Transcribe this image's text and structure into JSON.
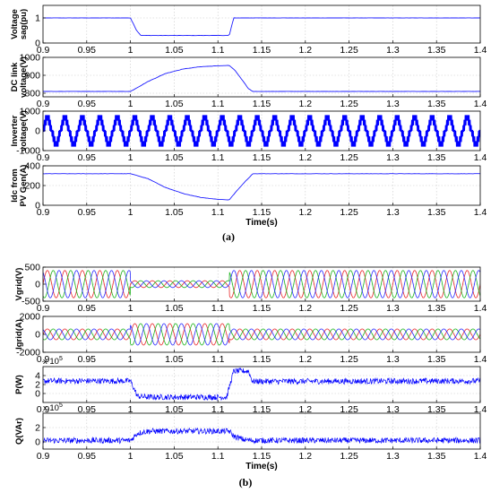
{
  "figure": {
    "caption_a": "(a)",
    "caption_b": "(b)"
  },
  "chart_data": [
    {
      "panel": "a1",
      "type": "line",
      "ylabel": [
        "Voltage",
        "sag(pu)"
      ],
      "xlim": [
        0.9,
        1.4
      ],
      "ylim": [
        0,
        1.5
      ],
      "yticks": [
        0,
        1
      ],
      "xticks": [
        "0.9",
        "0.95",
        "1",
        "1.05",
        "1.1",
        "1.15",
        "1.2",
        "1.25",
        "1.3",
        "1.35",
        "1.4"
      ],
      "xlabel": "",
      "grid": true,
      "series": [
        {
          "color": "#1a1aff",
          "x": [
            0.9,
            1.0,
            1.007,
            1.012,
            1.113,
            1.118,
            1.4
          ],
          "y": [
            1,
            1,
            0.5,
            0.3,
            0.3,
            1,
            1
          ]
        }
      ]
    },
    {
      "panel": "a2",
      "type": "line",
      "ylabel": [
        "DC link",
        "voltage(V)"
      ],
      "xlim": [
        0.9,
        1.4
      ],
      "ylim": [
        780,
        1000
      ],
      "yticks": [
        800,
        900,
        1000
      ],
      "xticks": [
        "0.9",
        "0.95",
        "1",
        "1.05",
        "1.1",
        "1.15",
        "1.2",
        "1.25",
        "1.3",
        "1.35",
        "1.4"
      ],
      "xlabel": "",
      "grid": true,
      "series": [
        {
          "color": "#1a1aff",
          "x": [
            0.9,
            1.0,
            1.02,
            1.04,
            1.06,
            1.08,
            1.1,
            1.113,
            1.12,
            1.135,
            1.14,
            1.4
          ],
          "y": [
            810,
            810,
            865,
            910,
            935,
            948,
            953,
            955,
            925,
            825,
            810,
            810
          ]
        }
      ]
    },
    {
      "panel": "a3",
      "type": "line",
      "ylabel": [
        "Inverter",
        "voltage(V)"
      ],
      "xlim": [
        0.9,
        1.4
      ],
      "ylim": [
        -1000,
        1000
      ],
      "yticks": [
        -1000,
        0,
        1000
      ],
      "xticks": [
        "0.9",
        "0.95",
        "1",
        "1.05",
        "1.1",
        "1.15",
        "1.2",
        "1.25",
        "1.3",
        "1.35",
        "1.4"
      ],
      "xlabel": "",
      "grid": true,
      "series": [
        {
          "color": "#0000ff",
          "frequency_hz": 50,
          "waveform": "multilevel-stepped",
          "amplitude": 800
        }
      ]
    },
    {
      "panel": "a4",
      "type": "line",
      "ylabel": [
        "Idc from",
        "PV Gen(A)"
      ],
      "xlim": [
        0.9,
        1.4
      ],
      "ylim": [
        0,
        400
      ],
      "yticks": [
        0,
        200,
        400
      ],
      "xticks": [
        "0.9",
        "0.95",
        "1",
        "1.05",
        "1.1",
        "1.15",
        "1.2",
        "1.25",
        "1.3",
        "1.35",
        "1.4"
      ],
      "xlabel": "Time(s)",
      "grid": true,
      "series": [
        {
          "color": "#1a1aff",
          "x": [
            0.9,
            1.0,
            1.02,
            1.04,
            1.06,
            1.08,
            1.1,
            1.113,
            1.12,
            1.13,
            1.14,
            1.4
          ],
          "y": [
            320,
            320,
            270,
            180,
            120,
            80,
            60,
            55,
            130,
            230,
            320,
            320
          ]
        }
      ]
    },
    {
      "panel": "b1",
      "type": "line",
      "ylabel": [
        "Vgrid(V)"
      ],
      "xlim": [
        0.9,
        1.4
      ],
      "ylim": [
        -500,
        500
      ],
      "yticks": [
        -500,
        0,
        500
      ],
      "xticks": [
        "0.9",
        "0.95",
        "1",
        "1.05",
        "1.1",
        "1.15",
        "1.2",
        "1.25",
        "1.3",
        "1.35",
        "1.4"
      ],
      "xlabel": "",
      "grid": true,
      "series": [
        {
          "name": "",
          "color": "#e8282b",
          "frequency_hz": 50,
          "phase_deg": 0,
          "amplitude": 400,
          "sag_amplitude": 100,
          "sag_interval": [
            1.0,
            1.113
          ]
        },
        {
          "name": "",
          "color": "#1db41d",
          "frequency_hz": 50,
          "phase_deg": -120,
          "amplitude": 400,
          "sag_amplitude": 100,
          "sag_interval": [
            1.0,
            1.113
          ]
        },
        {
          "name": "",
          "color": "#2b2bff",
          "frequency_hz": 50,
          "phase_deg": 120,
          "amplitude": 400,
          "sag_amplitude": 100,
          "sag_interval": [
            1.0,
            1.113
          ]
        }
      ]
    },
    {
      "panel": "b2",
      "type": "line",
      "ylabel": [
        "Igrid(A)"
      ],
      "xlim": [
        0.9,
        1.4
      ],
      "ylim": [
        -2000,
        2000
      ],
      "yticks": [
        -2000,
        0,
        2000
      ],
      "xticks": [
        "0.9",
        "0.95",
        "1",
        "1.05",
        "1.1",
        "1.15",
        "1.2",
        "1.25",
        "1.3",
        "1.35",
        "1.4"
      ],
      "xlabel": "",
      "grid": true,
      "series": [
        {
          "name": "",
          "color": "#e8282b",
          "frequency_hz": 50,
          "phase_deg": 0,
          "amplitude": 600,
          "sag_amplitude": 1200,
          "sag_interval": [
            1.0,
            1.113
          ]
        },
        {
          "name": "",
          "color": "#1db41d",
          "frequency_hz": 50,
          "phase_deg": -120,
          "amplitude": 600,
          "sag_amplitude": 1200,
          "sag_interval": [
            1.0,
            1.113
          ]
        },
        {
          "name": "",
          "color": "#2b2bff",
          "frequency_hz": 50,
          "phase_deg": 120,
          "amplitude": 600,
          "sag_amplitude": 1200,
          "sag_interval": [
            1.0,
            1.113
          ]
        }
      ]
    },
    {
      "panel": "b3",
      "type": "line",
      "ylabel": [
        "P(W)"
      ],
      "scale_exp": "5",
      "xlim": [
        0.9,
        1.4
      ],
      "ylim": [
        -2,
        6
      ],
      "yticks": [
        0,
        2,
        4
      ],
      "xticks": [
        "0.9",
        "0.95",
        "1",
        "1.05",
        "1.1",
        "1.15",
        "1.2",
        "1.25",
        "1.3",
        "1.35",
        "1.4"
      ],
      "xlabel": "",
      "grid": true,
      "series": [
        {
          "color": "#0000ff",
          "noisy": true,
          "x": [
            0.9,
            1.0,
            1.008,
            1.02,
            1.11,
            1.118,
            1.12,
            1.135,
            1.138,
            1.14,
            1.4
          ],
          "y": [
            2.8,
            2.8,
            -0.6,
            -0.8,
            -0.8,
            5.0,
            5.0,
            5.0,
            3.4,
            2.7,
            2.8
          ]
        }
      ]
    },
    {
      "panel": "b4",
      "type": "line",
      "ylabel": [
        "Q(VAr)"
      ],
      "scale_exp": "5",
      "xlim": [
        0.9,
        1.4
      ],
      "ylim": [
        -1,
        4
      ],
      "yticks": [
        0,
        2
      ],
      "xticks": [
        "0.9",
        "0.95",
        "1",
        "1.05",
        "1.1",
        "1.15",
        "1.2",
        "1.25",
        "1.3",
        "1.35",
        "1.4"
      ],
      "xlabel": "Time(s)",
      "grid": true,
      "series": [
        {
          "color": "#0000ff",
          "noisy": true,
          "x": [
            0.9,
            1.0,
            1.008,
            1.02,
            1.113,
            1.118,
            1.13,
            1.14,
            1.4
          ],
          "y": [
            0.2,
            0.2,
            1.2,
            1.5,
            1.5,
            0.8,
            0.3,
            0.2,
            0.2
          ]
        }
      ]
    }
  ]
}
